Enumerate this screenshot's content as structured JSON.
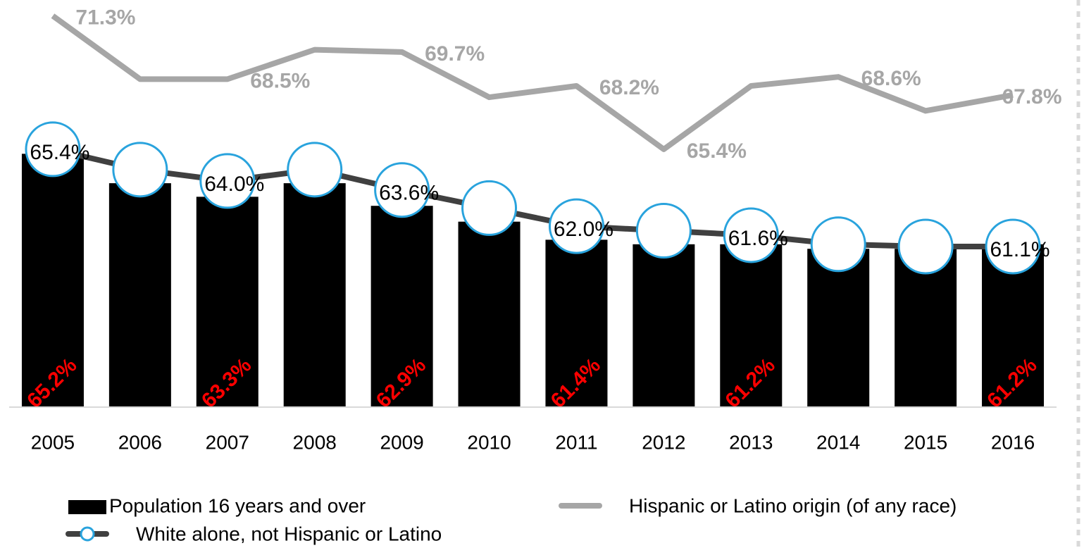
{
  "chart_data": {
    "type": "bar",
    "categories": [
      "2005",
      "2006",
      "2007",
      "2008",
      "2009",
      "2010",
      "2011",
      "2012",
      "2013",
      "2014",
      "2015",
      "2016"
    ],
    "ylim": [
      54,
      72
    ],
    "legend": "bottom",
    "series": [
      {
        "name": "Population 16 years and over",
        "type": "bar",
        "color": "#000000",
        "values": [
          65.2,
          63.9,
          63.3,
          63.9,
          62.9,
          62.2,
          61.4,
          61.2,
          61.2,
          61.0,
          61.0,
          61.2
        ],
        "value_labels": [
          "65.2%",
          null,
          "63.3%",
          null,
          "62.9%",
          null,
          "61.4%",
          null,
          "61.2%",
          null,
          null,
          "61.2%"
        ],
        "label_color": "#ff0000"
      },
      {
        "name": "Hispanic or Latino origin (of any race)",
        "type": "line",
        "color": "#a6a6a6",
        "values": [
          71.3,
          68.5,
          68.5,
          69.8,
          69.7,
          67.7,
          68.2,
          65.4,
          68.2,
          68.6,
          67.1,
          67.8
        ],
        "value_labels": [
          "71.3%",
          null,
          "68.5%",
          null,
          "69.7%",
          null,
          "68.2%",
          "65.4%",
          null,
          "68.6%",
          null,
          "67.8%"
        ]
      },
      {
        "name": "White alone, not Hispanic or Latino",
        "type": "line",
        "color": "#404040",
        "marker_color": "#29a3dd",
        "values": [
          65.4,
          64.5,
          64.0,
          64.5,
          63.6,
          62.8,
          62.0,
          61.8,
          61.6,
          61.2,
          61.1,
          61.1
        ],
        "value_labels": [
          "65.4%",
          null,
          "64.0%",
          null,
          "63.6%",
          null,
          "62.0%",
          null,
          "61.6%",
          null,
          null,
          "61.1%"
        ]
      }
    ]
  }
}
